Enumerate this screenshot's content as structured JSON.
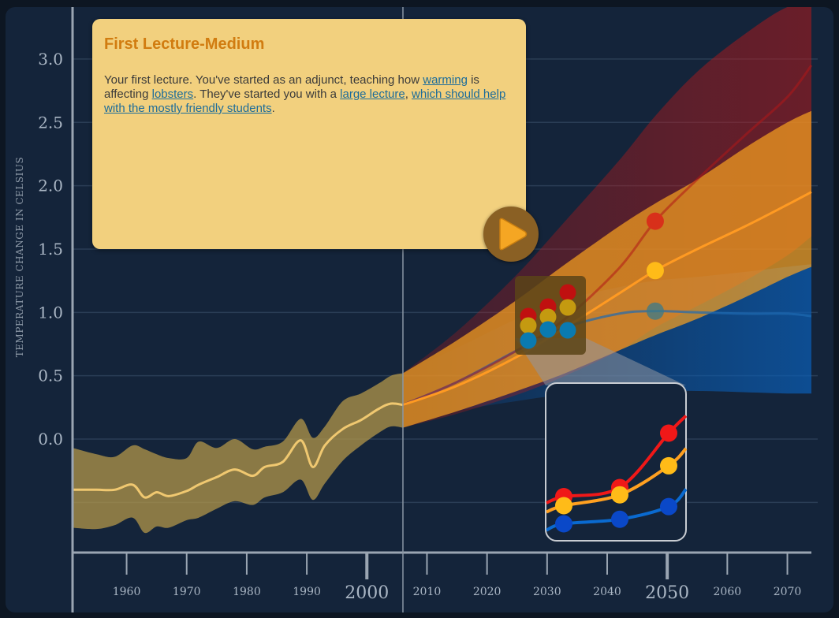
{
  "lecture": {
    "title": "First Lecture-Medium",
    "body_parts": [
      {
        "text": "Your first lecture. You've started as an adjunct, teaching how ",
        "link": false
      },
      {
        "text": "warming",
        "link": true
      },
      {
        "text": " is affecting ",
        "link": false
      },
      {
        "text": "lobsters",
        "link": true
      },
      {
        "text": ". They've started you with a ",
        "link": false
      },
      {
        "text": "large lecture",
        "link": true
      },
      {
        "text": ", ",
        "link": false
      },
      {
        "text": "which should help with the mostly friendly students",
        "link": true
      },
      {
        "text": ".",
        "link": false
      }
    ]
  },
  "icons": {
    "play": "play-icon"
  },
  "colors": {
    "background": "#14243a",
    "historical": "#b89a4a",
    "high": "#d01010",
    "medium": "#f5a020",
    "low": "#0a5fb8"
  },
  "chart_data": {
    "type": "area",
    "ylabel": "TEMPERATURE CHANGE IN CELSIUS",
    "xlabel": "",
    "xlim": [
      1951,
      2074
    ],
    "ylim": [
      -1.07,
      3.41
    ],
    "x_ticks": [
      1960,
      1970,
      1980,
      1990,
      2000,
      2010,
      2020,
      2030,
      2040,
      2050,
      2060,
      2070
    ],
    "x_tick_labels": [
      "1960",
      "1970",
      "1980",
      "1990",
      "2000",
      "2010",
      "2020",
      "2030",
      "2040",
      "2050",
      "2060",
      "2070"
    ],
    "y_ticks": [
      0.0,
      0.5,
      1.0,
      1.5,
      2.0,
      2.5,
      3.0
    ],
    "y_tick_labels": [
      "0.0",
      "0.5",
      "1.0",
      "1.5",
      "2.0",
      "2.5",
      "3.0"
    ],
    "grid": true,
    "present_year": 2006,
    "historical": {
      "x": [
        1951,
        1955,
        1958,
        1961,
        1963,
        1965,
        1967,
        1970,
        1972,
        1975,
        1978,
        1981,
        1983,
        1986,
        1989,
        1991,
        1993,
        1996,
        1999,
        2002,
        2004,
        2006
      ],
      "y": [
        -0.4,
        -0.4,
        -0.4,
        -0.36,
        -0.46,
        -0.42,
        -0.45,
        -0.41,
        -0.36,
        -0.3,
        -0.24,
        -0.29,
        -0.22,
        -0.18,
        -0.01,
        -0.22,
        -0.05,
        0.08,
        0.15,
        0.24,
        0.28,
        0.27
      ],
      "upper": [
        -0.07,
        -0.12,
        -0.14,
        -0.05,
        -0.08,
        -0.12,
        -0.15,
        -0.15,
        -0.02,
        -0.07,
        0.0,
        -0.08,
        -0.06,
        -0.02,
        0.16,
        0.01,
        0.1,
        0.3,
        0.36,
        0.44,
        0.5,
        0.52
      ],
      "lower": [
        -0.7,
        -0.71,
        -0.68,
        -0.62,
        -0.74,
        -0.69,
        -0.7,
        -0.64,
        -0.62,
        -0.55,
        -0.49,
        -0.52,
        -0.46,
        -0.42,
        -0.32,
        -0.48,
        -0.35,
        -0.17,
        -0.05,
        0.05,
        0.1,
        0.09
      ]
    },
    "series": [
      {
        "name": "high",
        "x": [
          2006,
          2015,
          2025,
          2033,
          2042,
          2048,
          2055,
          2063,
          2070,
          2074
        ],
        "y": [
          0.27,
          0.45,
          0.7,
          0.95,
          1.35,
          1.72,
          2.05,
          2.4,
          2.7,
          2.95
        ],
        "upper": [
          0.52,
          0.85,
          1.3,
          1.72,
          2.2,
          2.55,
          2.9,
          3.2,
          3.41,
          3.41
        ],
        "lower": [
          0.09,
          0.2,
          0.35,
          0.5,
          0.7,
          0.88,
          1.05,
          1.25,
          1.45,
          1.6
        ],
        "marker_x": 2048,
        "marker_y": 1.72
      },
      {
        "name": "medium",
        "x": [
          2006,
          2015,
          2025,
          2033,
          2042,
          2048,
          2055,
          2063,
          2070,
          2074
        ],
        "y": [
          0.27,
          0.42,
          0.65,
          0.88,
          1.15,
          1.33,
          1.5,
          1.68,
          1.85,
          1.95
        ],
        "upper": [
          0.52,
          0.78,
          1.1,
          1.38,
          1.68,
          1.86,
          2.05,
          2.3,
          2.5,
          2.59
        ],
        "lower": [
          0.09,
          0.22,
          0.38,
          0.52,
          0.7,
          0.82,
          0.95,
          1.12,
          1.28,
          1.36
        ],
        "marker_x": 2048,
        "marker_y": 1.33
      },
      {
        "name": "low",
        "x": [
          2006,
          2015,
          2025,
          2033,
          2042,
          2048,
          2055,
          2063,
          2070,
          2074
        ],
        "y": [
          0.27,
          0.45,
          0.7,
          0.88,
          0.99,
          1.01,
          1.0,
          0.99,
          0.99,
          0.97
        ],
        "upper": [
          0.52,
          0.72,
          0.95,
          1.1,
          1.2,
          1.25,
          1.28,
          1.32,
          1.36,
          1.38
        ],
        "lower": [
          0.09,
          0.22,
          0.3,
          0.35,
          0.37,
          0.38,
          0.38,
          0.37,
          0.36,
          0.36
        ],
        "marker_x": 2048,
        "marker_y": 1.01
      }
    ]
  },
  "legend_glyph": {
    "high": [
      0.6,
      0.7,
      1.3
    ],
    "medium": [
      0.5,
      0.62,
      0.94
    ],
    "low": [
      0.3,
      0.35,
      0.49
    ]
  }
}
